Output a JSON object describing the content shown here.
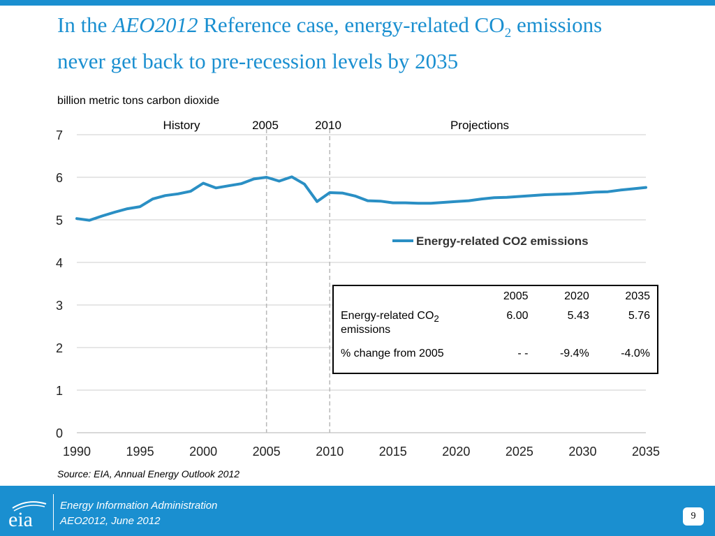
{
  "title": {
    "prefix": "In the ",
    "italic": "AEO2012",
    "mid": " Reference case, energy-related CO",
    "sub": "2",
    "line1_end": " emissions",
    "line2": "never get back to pre-recession levels by 2035"
  },
  "chart_data": {
    "type": "line",
    "ylabel": "billion metric tons carbon dioxide",
    "xlim": [
      1990,
      2035
    ],
    "ylim": [
      0,
      7
    ],
    "x_ticks": [
      "1990",
      "1995",
      "2000",
      "2005",
      "2010",
      "2015",
      "2020",
      "2025",
      "2030",
      "2035"
    ],
    "y_ticks": [
      "0",
      "1",
      "2",
      "3",
      "4",
      "5",
      "6",
      "7"
    ],
    "grid": true,
    "legend_position": "right",
    "annotations": {
      "history": "History",
      "y2005": "2005",
      "y2010": "2010",
      "projections": "Projections"
    },
    "vertical_markers": [
      2005,
      2010
    ],
    "series": [
      {
        "name": "Energy-related CO2 emissions",
        "color": "#2a8fc4",
        "x": [
          1990,
          1991,
          1992,
          1993,
          1994,
          1995,
          1996,
          1997,
          1998,
          1999,
          2000,
          2001,
          2002,
          2003,
          2004,
          2005,
          2006,
          2007,
          2008,
          2009,
          2010,
          2011,
          2012,
          2013,
          2014,
          2015,
          2016,
          2017,
          2018,
          2019,
          2020,
          2021,
          2022,
          2023,
          2024,
          2025,
          2026,
          2027,
          2028,
          2029,
          2030,
          2031,
          2032,
          2033,
          2034,
          2035
        ],
        "values": [
          5.03,
          4.99,
          5.09,
          5.18,
          5.26,
          5.31,
          5.49,
          5.57,
          5.61,
          5.67,
          5.86,
          5.75,
          5.8,
          5.85,
          5.96,
          6.0,
          5.91,
          6.01,
          5.84,
          5.43,
          5.64,
          5.63,
          5.56,
          5.45,
          5.44,
          5.4,
          5.4,
          5.39,
          5.39,
          5.41,
          5.43,
          5.45,
          5.49,
          5.52,
          5.53,
          5.55,
          5.57,
          5.59,
          5.6,
          5.61,
          5.63,
          5.65,
          5.66,
          5.7,
          5.73,
          5.76
        ]
      }
    ]
  },
  "table": {
    "headers": [
      "",
      "2005",
      "2020",
      "2035"
    ],
    "rows": [
      {
        "label": "Energy-related CO",
        "label_sub": "2",
        "label_line2": "emissions",
        "values": [
          "6.00",
          "5.43",
          "5.76"
        ]
      },
      {
        "label": "% change from 2005",
        "values": [
          "- -",
          "-9.4%",
          "-4.0%"
        ]
      }
    ]
  },
  "source": {
    "prefix": "Source:  EIA, ",
    "italic": "Annual Energy Outlook 2012"
  },
  "footer": {
    "logo_text": "eia",
    "line1": "Energy Information Administration",
    "line2": "AEO2012, June 2012",
    "page_number": "9"
  },
  "colors": {
    "accent": "#1a8fd0",
    "series": "#2a8fc4",
    "grid": "#cccccc"
  }
}
